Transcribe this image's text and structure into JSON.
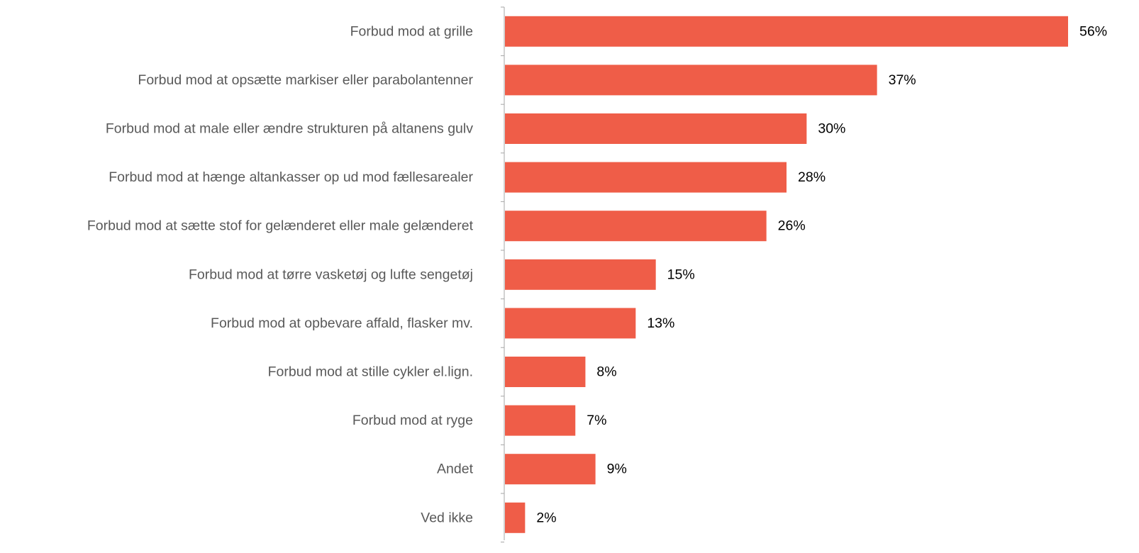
{
  "chart_data": {
    "type": "bar",
    "orientation": "horizontal",
    "categories": [
      "Forbud mod at grille",
      "Forbud mod at opsætte markiser eller parabolantenner",
      "Forbud mod at male eller ændre strukturen på altanens gulv",
      "Forbud mod at hænge altankasser op ud mod fællesarealer",
      "Forbud mod at sætte stof for gelænderet eller male gelænderet",
      "Forbud mod at tørre vasketøj og lufte sengetøj",
      "Forbud mod at opbevare affald, flasker mv.",
      "Forbud mod at stille cykler el.lign.",
      "Forbud mod at ryge",
      "Andet",
      "Ved ikke"
    ],
    "values": [
      56,
      37,
      30,
      28,
      26,
      15,
      13,
      8,
      7,
      9,
      2
    ],
    "value_labels": [
      "56%",
      "37%",
      "30%",
      "28%",
      "26%",
      "15%",
      "13%",
      "8%",
      "7%",
      "9%",
      "2%"
    ],
    "unit": "%",
    "xlim": [
      0,
      56
    ],
    "grid": false,
    "legend": "none",
    "title": "",
    "xlabel": "",
    "ylabel": "",
    "colors": {
      "bar": "#EF5D48",
      "axis": "#A6A6A6",
      "category_text": "#595959",
      "value_text": "#000000"
    }
  }
}
